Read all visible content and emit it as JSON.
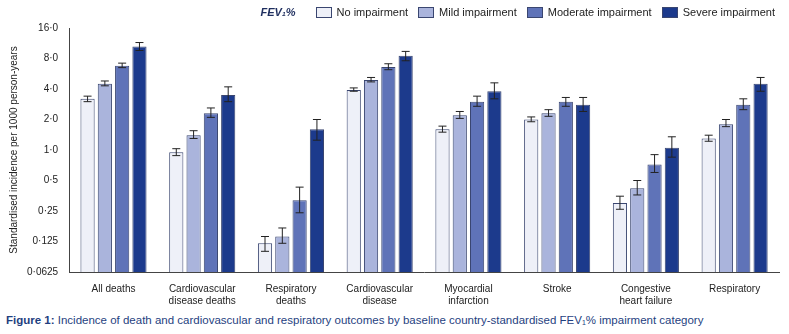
{
  "chart_data": {
    "type": "bar",
    "caption": "Figure 1: Incidence of death and cardiovascular and respiratory outcomes by baseline country-standardised FEV₁% impairment category",
    "y_label": "Standardised incidence per 1000 person-years",
    "legend_title": "FEV₁%",
    "categories": [
      "All deaths",
      "Cardiovascular disease deaths",
      "Respiratory deaths",
      "Cardiovascular disease",
      "Myocardial infarction",
      "Stroke",
      "Congestive heart failure",
      "Respiratory"
    ],
    "series": [
      {
        "name": "No impairment",
        "color": "#eef0f8",
        "values": [
          3.2,
          0.95,
          0.12,
          3.9,
          1.6,
          2.0,
          0.3,
          1.3
        ],
        "ci_low": [
          3.0,
          0.88,
          0.1,
          3.8,
          1.5,
          1.9,
          0.26,
          1.22
        ],
        "ci_high": [
          3.4,
          1.03,
          0.14,
          4.1,
          1.72,
          2.12,
          0.35,
          1.4
        ]
      },
      {
        "name": "Mild impairment",
        "color": "#aab4dc",
        "values": [
          4.5,
          1.4,
          0.14,
          4.9,
          2.2,
          2.3,
          0.42,
          1.8
        ],
        "ci_low": [
          4.3,
          1.3,
          0.12,
          4.7,
          2.05,
          2.15,
          0.36,
          1.7
        ],
        "ci_high": [
          4.8,
          1.55,
          0.17,
          5.2,
          2.4,
          2.5,
          0.5,
          2.0
        ]
      },
      {
        "name": "Moderate impairment",
        "color": "#5f73b8",
        "values": [
          6.8,
          2.3,
          0.32,
          6.6,
          3.0,
          3.0,
          0.72,
          2.8
        ],
        "ci_low": [
          6.5,
          2.1,
          0.24,
          6.2,
          2.7,
          2.7,
          0.6,
          2.5
        ],
        "ci_high": [
          7.2,
          2.6,
          0.43,
          7.1,
          3.4,
          3.3,
          0.9,
          3.2
        ]
      },
      {
        "name": "Severe impairment",
        "color": "#1c3a8c",
        "values": [
          10.5,
          3.5,
          1.6,
          8.5,
          3.8,
          2.8,
          1.05,
          4.5
        ],
        "ci_low": [
          9.6,
          3.0,
          1.25,
          7.6,
          3.2,
          2.4,
          0.85,
          3.8
        ],
        "ci_high": [
          11.5,
          4.2,
          2.0,
          9.4,
          4.6,
          3.3,
          1.35,
          5.2
        ]
      }
    ],
    "log": "y",
    "ylim": [
      0.0625,
      16
    ],
    "yticks": [
      {
        "value": 0.0625,
        "label": "0·0625"
      },
      {
        "value": 0.125,
        "label": "0·125"
      },
      {
        "value": 0.25,
        "label": "0·25"
      },
      {
        "value": 0.5,
        "label": "0·5"
      },
      {
        "value": 1,
        "label": "1·0"
      },
      {
        "value": 2,
        "label": "2·0"
      },
      {
        "value": 4,
        "label": "4·0"
      },
      {
        "value": 8,
        "label": "8·0"
      },
      {
        "value": 16,
        "label": "16·0"
      }
    ],
    "grid": false,
    "legend": "top right"
  }
}
